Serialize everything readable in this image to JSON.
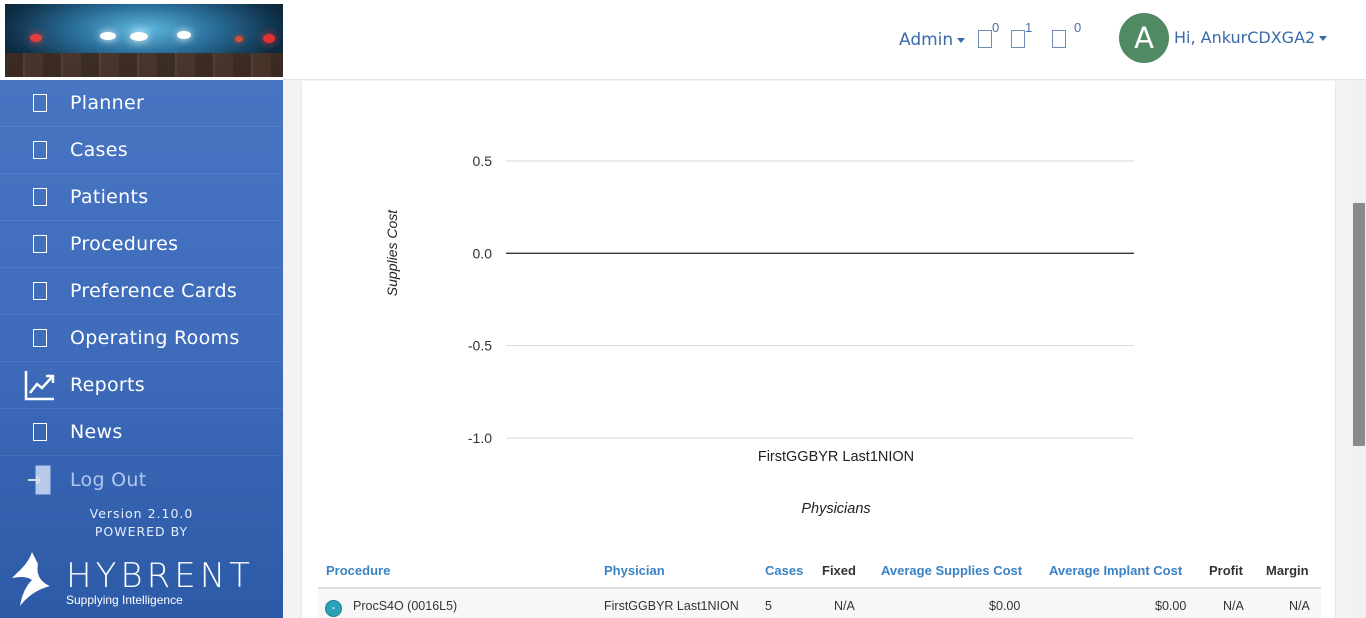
{
  "header": {
    "role_menu_label": "Admin",
    "notifications": [
      {
        "icon": "notification-icon",
        "count": "0"
      },
      {
        "icon": "message-icon",
        "count": "1"
      },
      {
        "icon": "alert-icon",
        "count": "0"
      }
    ],
    "avatar_letter": "A",
    "greeting": "Hi, AnkurCDXGA2",
    "colors": {
      "accent": "#3a6aa9",
      "avatar": "#4f8a62"
    }
  },
  "sidebar": {
    "items": [
      {
        "label": "Planner",
        "icon": "planner-icon"
      },
      {
        "label": "Cases",
        "icon": "cases-icon"
      },
      {
        "label": "Patients",
        "icon": "patients-icon"
      },
      {
        "label": "Procedures",
        "icon": "procedures-icon"
      },
      {
        "label": "Preference Cards",
        "icon": "preference-cards-icon"
      },
      {
        "label": "Operating Rooms",
        "icon": "operating-rooms-icon"
      },
      {
        "label": "Reports",
        "icon": "reports-chart-icon"
      },
      {
        "label": "News",
        "icon": "news-icon"
      }
    ],
    "logout_label": "Log Out",
    "version": "Version 2.10.0",
    "powered_by": "POWERED BY",
    "brand_name": "HYBRENT",
    "brand_tagline": "Supplying Intelligence",
    "colors": {
      "top": "#4a78c4",
      "bottom": "#2c5aa6"
    }
  },
  "chart_data": {
    "type": "bar",
    "categories": [
      "FirstGGBYR Last1NION"
    ],
    "values": [
      0.0
    ],
    "xlabel": "Physicians",
    "ylabel": "Supplies Cost",
    "yticks": [
      "0.5",
      "0.0",
      "-0.5",
      "-1.0"
    ],
    "ylim": [
      -1.0,
      0.5
    ],
    "grid": true
  },
  "table": {
    "headers": {
      "procedure": "Procedure",
      "procedure_sort_icon": "",
      "physician": "Physician",
      "cases": "Cases",
      "fixed": "Fixed",
      "avg_supplies": "Average Supplies Cost",
      "avg_implant": "Average Implant Cost",
      "profit": "Profit",
      "margin": "Margin"
    },
    "rows": [
      {
        "expand": "-",
        "procedure": "ProcS4O (0016L5)",
        "physician": "FirstGGBYR Last1NION",
        "cases": "5",
        "fixed": "N/A",
        "avg_supplies": "$0.00",
        "avg_implant": "$0.00",
        "profit": "N/A",
        "margin": "N/A"
      }
    ]
  }
}
